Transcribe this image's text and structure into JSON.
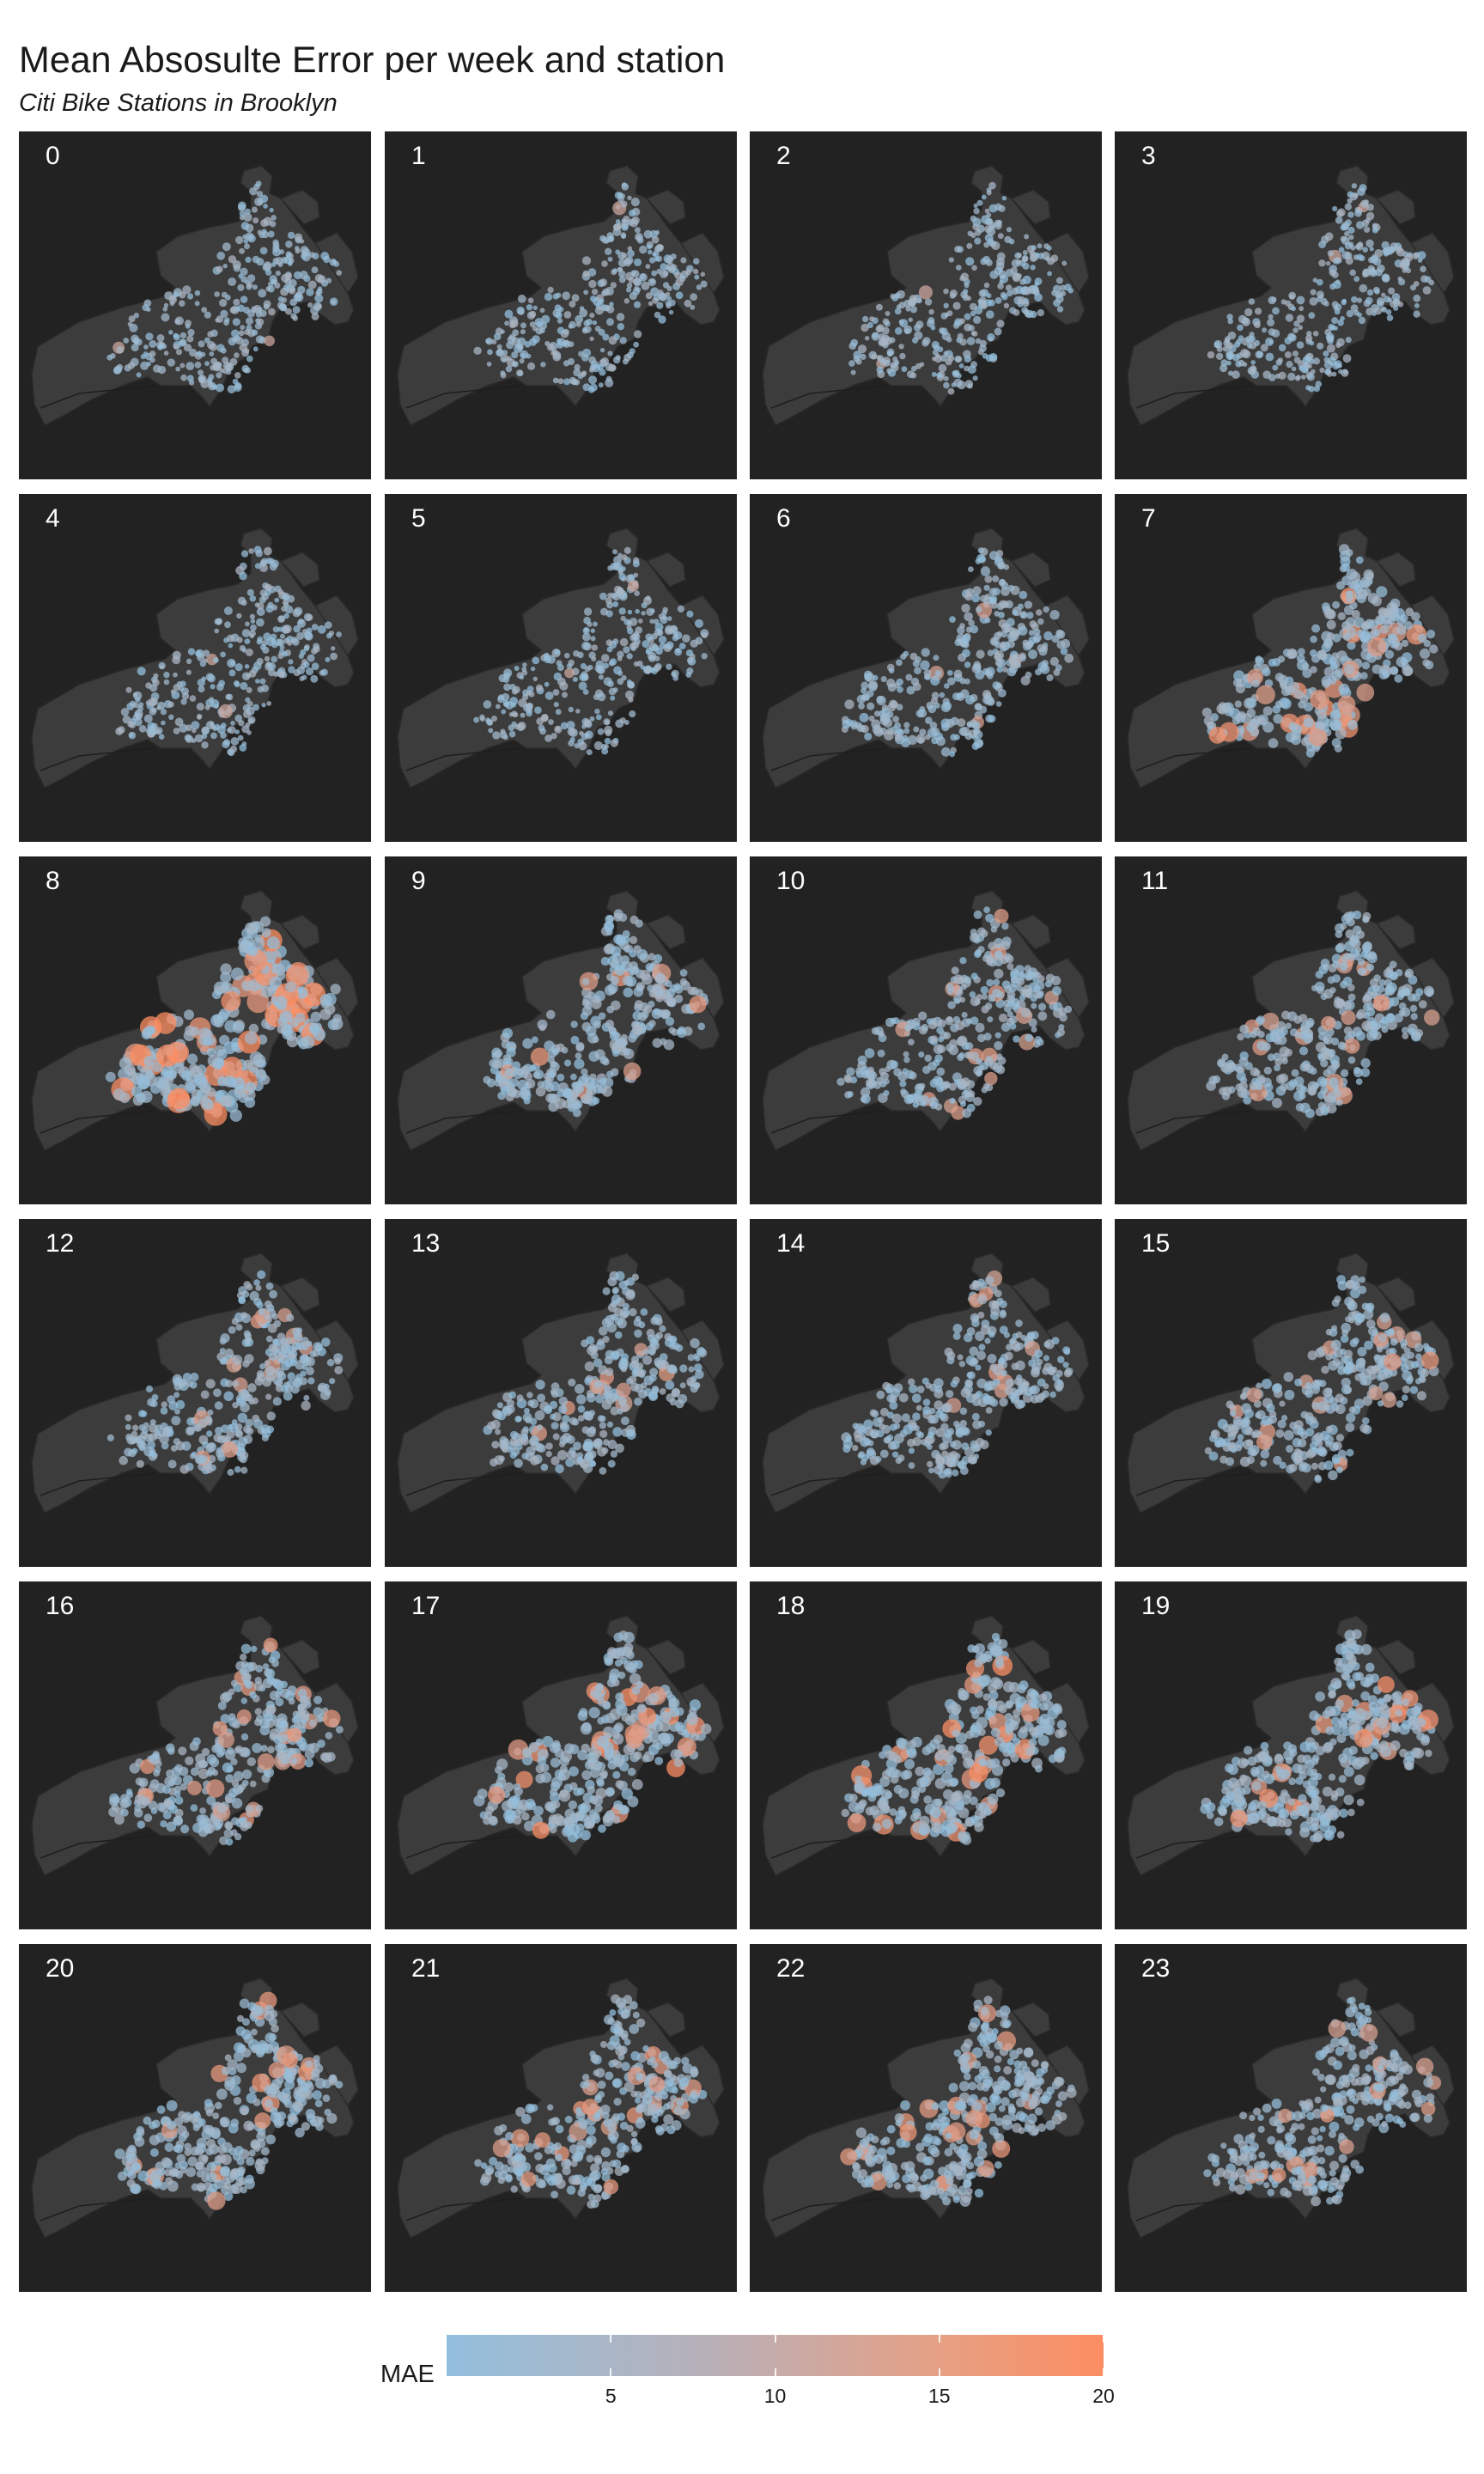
{
  "header": {
    "title": "Mean Absosulte Error per week and station",
    "subtitle": "Citi Bike Stations in Brooklyn"
  },
  "colors": {
    "panel_bg": "#222222",
    "map_fill": "#3c3c3c",
    "map_stroke": "#2a2a2a",
    "low": "#92bfdd",
    "high": "#fc8d62"
  },
  "chart_data": {
    "type": "scatter",
    "facet_variable": "week",
    "panels": [
      "0",
      "1",
      "2",
      "3",
      "4",
      "5",
      "6",
      "7",
      "8",
      "9",
      "10",
      "11",
      "12",
      "13",
      "14",
      "15",
      "16",
      "17",
      "18",
      "19",
      "20",
      "21",
      "22",
      "23"
    ],
    "color_variable": "MAE",
    "legend": {
      "title": "MAE",
      "range": [
        0,
        20
      ],
      "ticks": [
        "5",
        "10",
        "15",
        "20"
      ],
      "tick_values": [
        5,
        10,
        15,
        20
      ],
      "position": "bottom"
    },
    "panel_high_error_level": [
      0.05,
      0.04,
      0.05,
      0.04,
      0.06,
      0.05,
      0.25,
      0.55,
      0.85,
      0.45,
      0.3,
      0.4,
      0.3,
      0.3,
      0.3,
      0.35,
      0.4,
      0.6,
      0.6,
      0.55,
      0.5,
      0.4,
      0.45,
      0.35
    ]
  }
}
